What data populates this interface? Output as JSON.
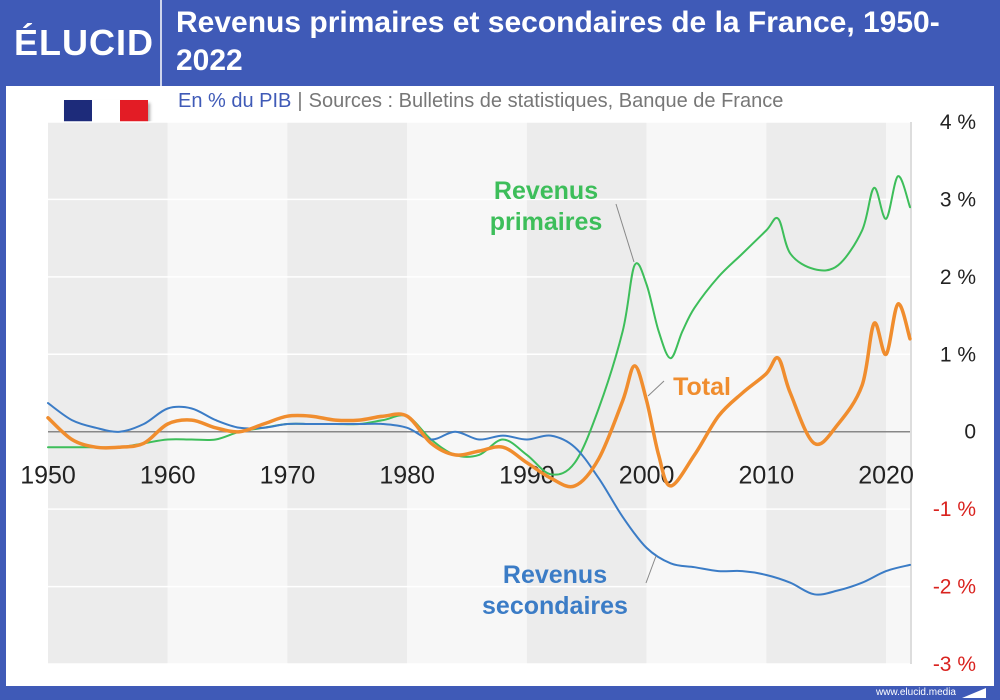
{
  "header": {
    "logo": "ÉLUCID",
    "title": "Revenus primaires et secondaires de la France, 1950-2022"
  },
  "subtitle": {
    "unit": "En % du PIB",
    "separator": "|",
    "source": "Sources : Bulletins de statistiques, Banque de France"
  },
  "flag": {
    "name": "france-flag-icon",
    "colors": [
      "#1d2b7a",
      "#ffffff",
      "#e31c25"
    ]
  },
  "footer": {
    "url": "www.elucid.media"
  },
  "colors": {
    "brand": "#3f5ab7",
    "primaires": "#3dbe5a",
    "secondaires": "#3b7cc6",
    "total": "#f08d2e",
    "negative_tick": "#d9231f"
  },
  "chart_data": {
    "type": "line",
    "xlim": [
      1950,
      2022
    ],
    "ylim": [
      -3,
      4
    ],
    "x_ticks": [
      1950,
      1960,
      1970,
      1980,
      1990,
      2000,
      2010,
      2020
    ],
    "y_ticks": [
      {
        "value": 4,
        "label": "4 %"
      },
      {
        "value": 3,
        "label": "3 %"
      },
      {
        "value": 2,
        "label": "2 %"
      },
      {
        "value": 1,
        "label": "1 %"
      },
      {
        "value": 0,
        "label": "0"
      },
      {
        "value": -1,
        "label": "-1 %"
      },
      {
        "value": -2,
        "label": "-2 %"
      },
      {
        "value": -3,
        "label": "-3 %"
      }
    ],
    "grid": true,
    "series": [
      {
        "name": "Revenus primaires",
        "label_lines": [
          "Revenus",
          "primaires"
        ],
        "x": [
          1950,
          1952,
          1954,
          1956,
          1958,
          1960,
          1962,
          1964,
          1966,
          1968,
          1970,
          1972,
          1974,
          1976,
          1978,
          1980,
          1982,
          1984,
          1986,
          1988,
          1990,
          1992,
          1994,
          1996,
          1998,
          1999,
          2000,
          2001,
          2002,
          2003,
          2004,
          2006,
          2008,
          2010,
          2011,
          2012,
          2014,
          2016,
          2018,
          2019,
          2020,
          2021,
          2022
        ],
        "values": [
          -0.2,
          -0.2,
          -0.2,
          -0.2,
          -0.15,
          -0.1,
          -0.1,
          -0.1,
          0.0,
          0.05,
          0.1,
          0.1,
          0.1,
          0.1,
          0.15,
          0.2,
          -0.1,
          -0.3,
          -0.3,
          -0.1,
          -0.3,
          -0.55,
          -0.4,
          0.3,
          1.3,
          2.15,
          1.9,
          1.3,
          0.95,
          1.3,
          1.6,
          2.0,
          2.3,
          2.6,
          2.75,
          2.3,
          2.1,
          2.15,
          2.6,
          3.15,
          2.75,
          3.3,
          2.9
        ]
      },
      {
        "name": "Revenus secondaires",
        "label_lines": [
          "Revenus",
          "secondaires"
        ],
        "x": [
          1950,
          1952,
          1954,
          1956,
          1958,
          1960,
          1962,
          1964,
          1966,
          1968,
          1970,
          1972,
          1974,
          1976,
          1978,
          1980,
          1982,
          1984,
          1986,
          1988,
          1990,
          1992,
          1994,
          1996,
          1998,
          2000,
          2002,
          2004,
          2006,
          2008,
          2010,
          2012,
          2014,
          2016,
          2018,
          2020,
          2022
        ],
        "values": [
          0.37,
          0.15,
          0.05,
          0.0,
          0.1,
          0.3,
          0.3,
          0.15,
          0.05,
          0.05,
          0.1,
          0.1,
          0.1,
          0.1,
          0.1,
          0.05,
          -0.1,
          0.0,
          -0.1,
          -0.05,
          -0.1,
          -0.05,
          -0.2,
          -0.6,
          -1.1,
          -1.5,
          -1.7,
          -1.75,
          -1.8,
          -1.8,
          -1.85,
          -1.95,
          -2.1,
          -2.05,
          -1.95,
          -1.8,
          -1.72
        ]
      },
      {
        "name": "Total",
        "label_lines": [
          "Total"
        ],
        "x": [
          1950,
          1952,
          1954,
          1956,
          1958,
          1960,
          1962,
          1964,
          1966,
          1968,
          1970,
          1972,
          1974,
          1976,
          1978,
          1980,
          1982,
          1984,
          1986,
          1988,
          1990,
          1992,
          1994,
          1996,
          1998,
          1999,
          2000,
          2001,
          2002,
          2004,
          2006,
          2008,
          2010,
          2011,
          2012,
          2014,
          2016,
          2018,
          2019,
          2020,
          2021,
          2022
        ],
        "values": [
          0.18,
          -0.1,
          -0.2,
          -0.2,
          -0.15,
          0.1,
          0.15,
          0.05,
          0.0,
          0.1,
          0.2,
          0.2,
          0.15,
          0.15,
          0.2,
          0.2,
          -0.15,
          -0.3,
          -0.25,
          -0.2,
          -0.4,
          -0.6,
          -0.7,
          -0.35,
          0.4,
          0.85,
          0.4,
          -0.3,
          -0.7,
          -0.3,
          0.2,
          0.5,
          0.75,
          0.95,
          0.5,
          -0.15,
          0.1,
          0.6,
          1.4,
          1.0,
          1.65,
          1.2
        ]
      }
    ]
  }
}
